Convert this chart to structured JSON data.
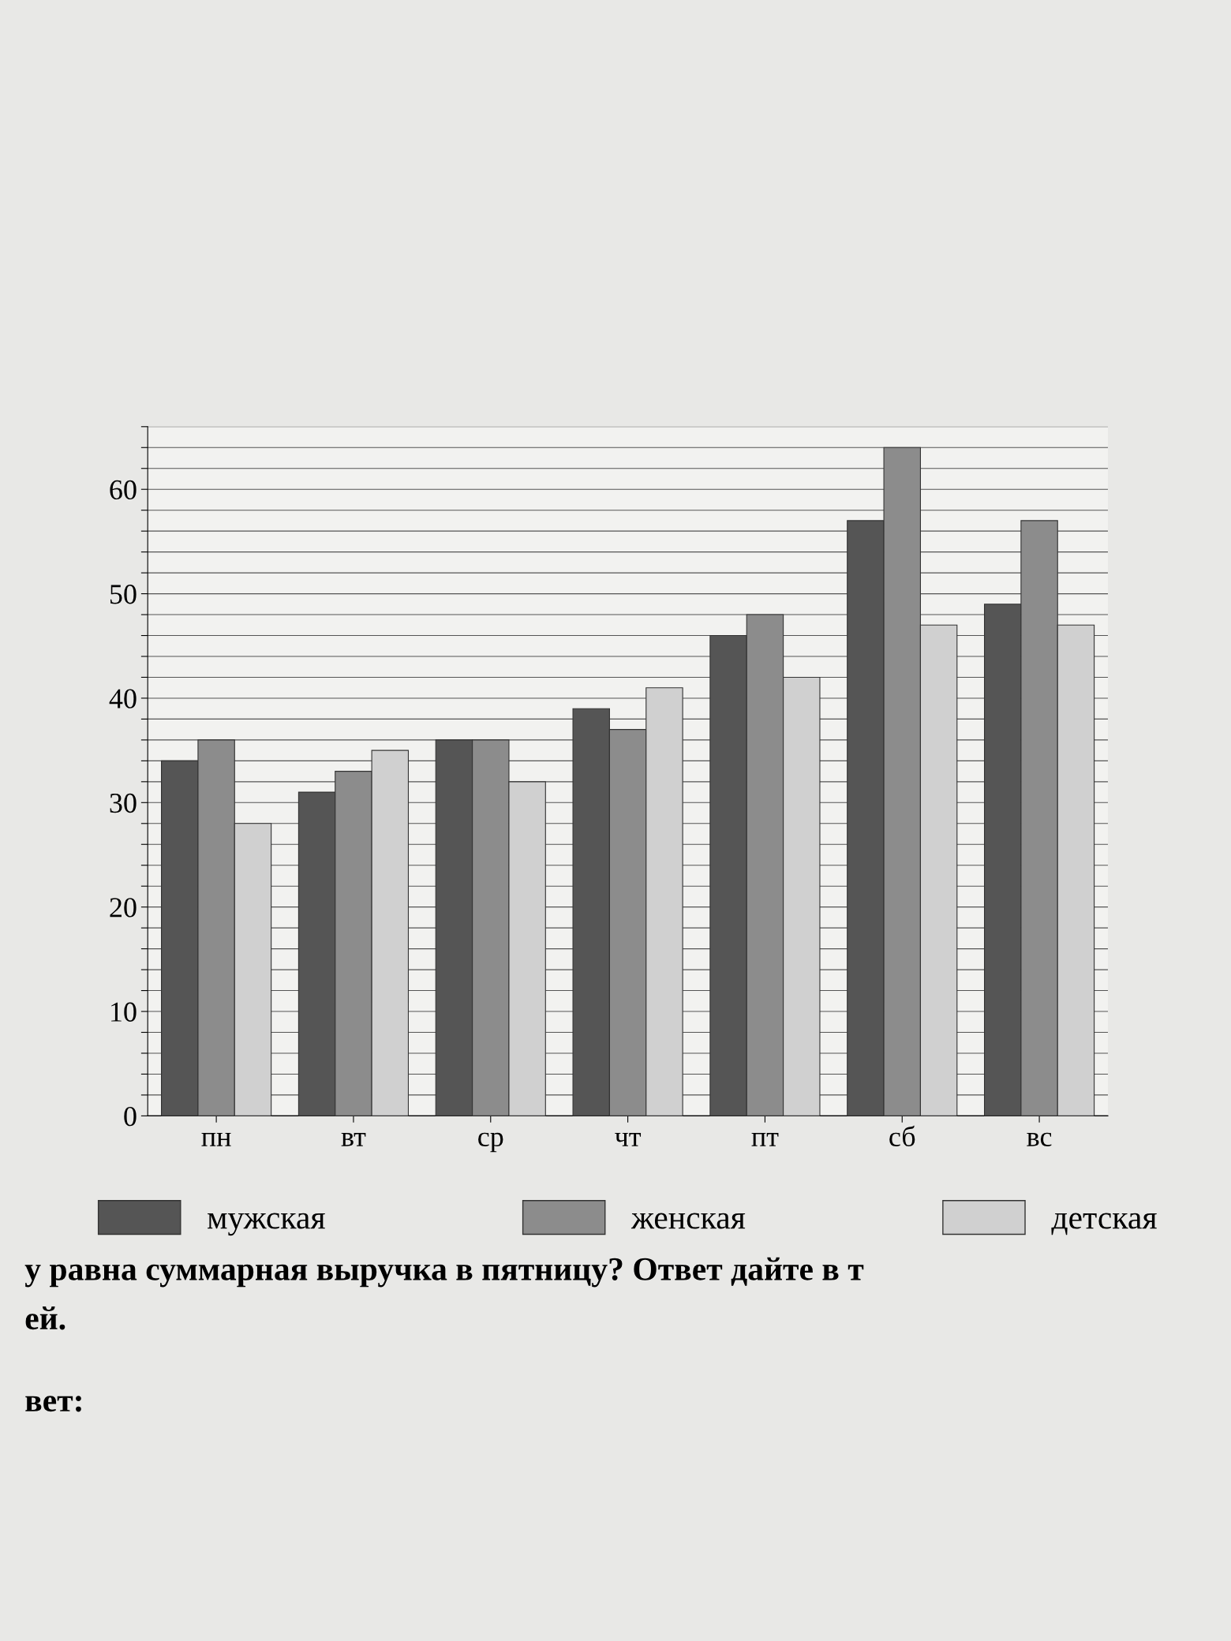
{
  "chart_data": {
    "type": "bar",
    "categories": [
      "пн",
      "вт",
      "ср",
      "чт",
      "пт",
      "сб",
      "вс"
    ],
    "series": [
      {
        "name": "мужская",
        "color": "#555555",
        "values": [
          34,
          31,
          36,
          39,
          46,
          57,
          49
        ]
      },
      {
        "name": "женская",
        "color": "#8c8c8c",
        "values": [
          36,
          33,
          36,
          37,
          48,
          64,
          57
        ]
      },
      {
        "name": "детская",
        "color": "#d0d0d0",
        "values": [
          28,
          35,
          32,
          41,
          42,
          47,
          47
        ]
      }
    ],
    "ylim": [
      0,
      66
    ],
    "yticks": [
      0,
      {
        "value": 2,
        "label": null
      },
      {
        "value": 4,
        "label": null
      },
      {
        "value": 6,
        "label": null
      },
      {
        "value": 8,
        "label": null
      },
      10,
      {
        "value": 12,
        "label": null
      },
      {
        "value": 14,
        "label": null
      },
      {
        "value": 16,
        "label": null
      },
      {
        "value": 18,
        "label": null
      },
      20,
      {
        "value": 22,
        "label": null
      },
      {
        "value": 24,
        "label": null
      },
      {
        "value": 26,
        "label": null
      },
      {
        "value": 28,
        "label": null
      },
      30,
      {
        "value": 32,
        "label": null
      },
      {
        "value": 34,
        "label": null
      },
      {
        "value": 36,
        "label": null
      },
      {
        "value": 38,
        "label": null
      },
      40,
      {
        "value": 42,
        "label": null
      },
      {
        "value": 44,
        "label": null
      },
      {
        "value": 46,
        "label": null
      },
      {
        "value": 48,
        "label": null
      },
      50,
      {
        "value": 52,
        "label": null
      },
      {
        "value": 54,
        "label": null
      },
      {
        "value": 56,
        "label": null
      },
      {
        "value": 58,
        "label": null
      },
      60,
      {
        "value": 62,
        "label": null
      },
      {
        "value": 64,
        "label": null
      },
      {
        "value": 66,
        "label": null
      }
    ],
    "grid": "y",
    "legend": "bottom",
    "annotations": [
      "у равна суммарная выручка в пятницу? Ответ дайте в т",
      "ей.",
      "вет:"
    ]
  }
}
